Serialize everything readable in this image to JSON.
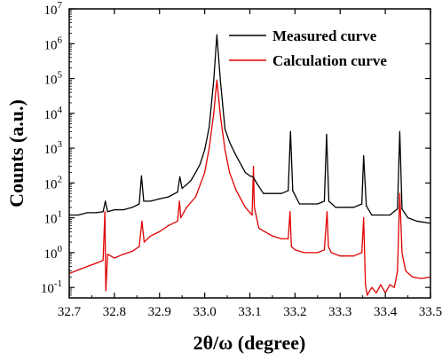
{
  "chart_data": {
    "type": "line",
    "title": "",
    "xlabel": "2θ/ω (degree)",
    "ylabel": "Counts (a.u.)",
    "x_scale": "linear",
    "y_scale": "log",
    "xlim": [
      32.7,
      33.5
    ],
    "ylim": [
      0.05,
      10000000
    ],
    "x_ticks": [
      32.7,
      32.8,
      32.9,
      33.0,
      33.1,
      33.2,
      33.3,
      33.4,
      33.5
    ],
    "x_tick_labels": [
      "32.7",
      "32.8",
      "32.9",
      "33.0",
      "33.1",
      "33.2",
      "33.3",
      "33.4",
      "33.5"
    ],
    "y_ticks": [
      0.1,
      1,
      10,
      100,
      1000,
      10000,
      100000,
      1000000,
      10000000
    ],
    "y_tick_labels": [
      {
        "base": "10",
        "exp": "-1"
      },
      {
        "base": "10",
        "exp": "0"
      },
      {
        "base": "10",
        "exp": "1"
      },
      {
        "base": "10",
        "exp": "2"
      },
      {
        "base": "10",
        "exp": "3"
      },
      {
        "base": "10",
        "exp": "4"
      },
      {
        "base": "10",
        "exp": "5"
      },
      {
        "base": "10",
        "exp": "6"
      },
      {
        "base": "10",
        "exp": "7"
      }
    ],
    "grid": false,
    "legend_position": "top-right",
    "series": [
      {
        "name": "Measured curve",
        "color": "#000000",
        "x": [
          32.7,
          32.72,
          32.74,
          32.76,
          32.775,
          32.78,
          32.785,
          32.8,
          32.82,
          32.84,
          32.855,
          32.86,
          32.865,
          32.88,
          32.9,
          32.92,
          32.94,
          32.945,
          32.95,
          32.96,
          32.97,
          32.98,
          32.99,
          33.0,
          33.01,
          33.02,
          33.027,
          33.035,
          33.045,
          33.055,
          33.065,
          33.075,
          33.09,
          33.1,
          33.107,
          33.115,
          33.13,
          33.15,
          33.17,
          33.185,
          33.19,
          33.195,
          33.21,
          33.23,
          33.25,
          33.265,
          33.27,
          33.275,
          33.29,
          33.31,
          33.33,
          33.348,
          33.352,
          33.358,
          33.37,
          33.39,
          33.41,
          33.427,
          33.432,
          33.437,
          33.45,
          33.47,
          33.5
        ],
        "y": [
          12,
          12,
          14,
          14,
          15,
          30,
          15,
          17,
          17,
          20,
          25,
          160,
          30,
          30,
          35,
          40,
          55,
          150,
          70,
          90,
          120,
          200,
          350,
          900,
          4000,
          90000,
          1800000,
          80000,
          3500,
          1500,
          800,
          450,
          200,
          160,
          150,
          100,
          50,
          50,
          50,
          60,
          3000,
          60,
          25,
          25,
          25,
          30,
          2500,
          30,
          20,
          20,
          20,
          25,
          600,
          22,
          12,
          12,
          12,
          18,
          3000,
          18,
          10,
          8,
          7
        ]
      },
      {
        "name": "Calculation curve",
        "color": "#e00000",
        "x": [
          32.7,
          32.72,
          32.74,
          32.76,
          32.775,
          32.779,
          32.781,
          32.785,
          32.8,
          32.82,
          32.84,
          32.855,
          32.861,
          32.866,
          32.88,
          32.9,
          32.92,
          32.94,
          32.944,
          32.947,
          32.96,
          32.98,
          33.0,
          33.01,
          33.02,
          33.027,
          33.035,
          33.045,
          33.055,
          33.07,
          33.09,
          33.105,
          33.108,
          33.11,
          33.12,
          33.15,
          33.17,
          33.185,
          33.189,
          33.192,
          33.2,
          33.22,
          33.25,
          33.265,
          33.271,
          33.274,
          33.28,
          33.3,
          33.33,
          33.348,
          33.352,
          33.356,
          33.36,
          33.37,
          33.38,
          33.39,
          33.4,
          33.41,
          33.42,
          33.427,
          33.432,
          33.437,
          33.445,
          33.46,
          33.48,
          33.5
        ],
        "y": [
          0.25,
          0.32,
          0.4,
          0.5,
          0.6,
          15,
          0.08,
          0.9,
          0.7,
          0.9,
          1.1,
          1.5,
          8,
          2,
          3,
          4,
          6,
          8,
          30,
          10,
          20,
          40,
          200,
          1000,
          10000,
          90000,
          8000,
          900,
          200,
          60,
          20,
          12,
          300,
          20,
          5,
          3,
          2.5,
          2.5,
          15,
          1.5,
          1.2,
          1,
          1,
          1.2,
          15,
          1.5,
          1,
          0.8,
          0.8,
          1,
          10,
          0.12,
          0.06,
          0.1,
          0.07,
          0.12,
          0.07,
          0.12,
          0.1,
          0.3,
          50,
          1,
          0.3,
          0.2,
          0.18,
          0.2
        ]
      }
    ]
  }
}
